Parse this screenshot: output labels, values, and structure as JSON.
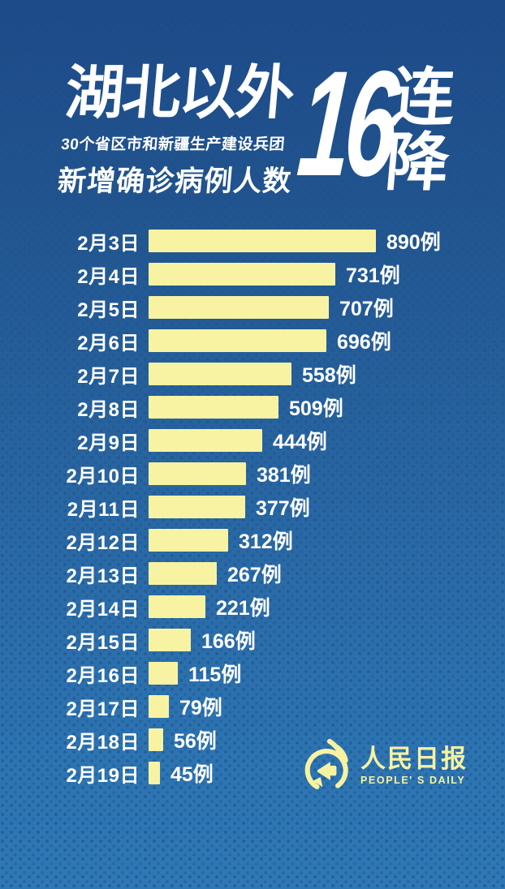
{
  "header": {
    "title": "湖北以外",
    "subtitle": "30个省区市和新疆生产建设兵团",
    "metric": "新增确诊病例人数",
    "big_number": "16",
    "streak_chars": [
      "连",
      "降"
    ]
  },
  "chart_data": {
    "type": "bar",
    "orientation": "horizontal",
    "title": "湖北以外新增确诊病例人数 16连降",
    "categories": [
      "2月3日",
      "2月4日",
      "2月5日",
      "2月6日",
      "2月7日",
      "2月8日",
      "2月9日",
      "2月10日",
      "2月11日",
      "2月12日",
      "2月13日",
      "2月14日",
      "2月15日",
      "2月16日",
      "2月17日",
      "2月18日",
      "2月19日"
    ],
    "values": [
      890,
      731,
      707,
      696,
      558,
      509,
      444,
      381,
      377,
      312,
      267,
      221,
      166,
      115,
      79,
      56,
      45
    ],
    "unit_suffix": "例",
    "xlim": [
      0,
      890
    ],
    "grid": false,
    "legend": false,
    "bar_color": "#f8f3a2",
    "label_color": "#ffffff"
  },
  "logo": {
    "name": "人民日报",
    "name_en": "PEOPLE' S DAILY",
    "color": "#f7f2a0"
  },
  "colors": {
    "background_top": "#1d4a89",
    "background_bottom": "#2e78b6",
    "bar": "#f8f3a2",
    "text": "#ffffff"
  }
}
